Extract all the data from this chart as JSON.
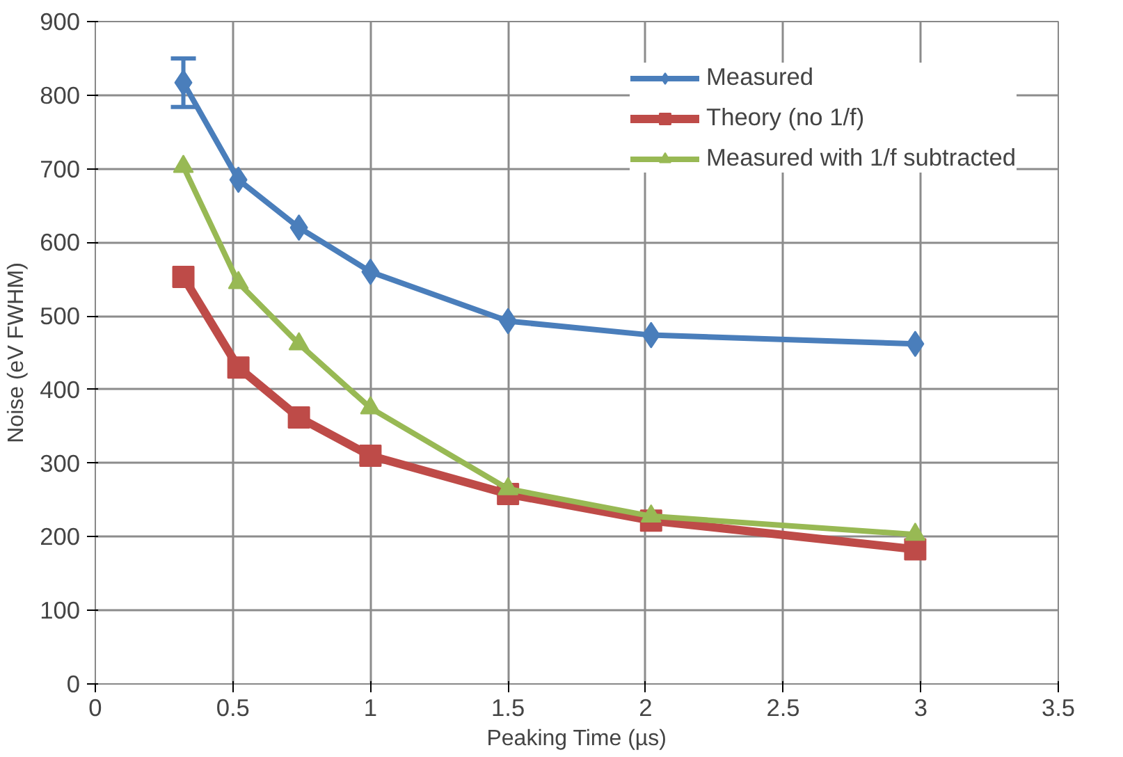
{
  "chart_data": {
    "type": "line",
    "xlabel": "Peaking Time (µs)",
    "ylabel": "Noise (eV FWHM)",
    "xlim": [
      0,
      3.5
    ],
    "xticks": [
      0,
      0.5,
      1,
      1.5,
      2,
      2.5,
      3,
      3.5
    ],
    "ylim": [
      0,
      900
    ],
    "yticks": [
      0,
      100,
      200,
      300,
      400,
      500,
      600,
      700,
      800,
      900
    ],
    "grid": true,
    "legend": "top right",
    "series": [
      {
        "name": "Measured",
        "color": "#4a7ebb",
        "marker": "diamond",
        "x": [
          0.32,
          0.52,
          0.74,
          1.0,
          1.5,
          2.02,
          2.98
        ],
        "values": [
          817,
          685,
          620,
          560,
          493,
          474,
          462
        ],
        "errors": [
          33,
          null,
          null,
          null,
          null,
          null,
          null
        ]
      },
      {
        "name": "Theory (no 1/f)",
        "color": "#be4b48",
        "marker": "square",
        "x": [
          0.32,
          0.52,
          0.74,
          1.0,
          1.5,
          2.02,
          2.98
        ],
        "values": [
          553,
          430,
          362,
          310,
          258,
          222,
          183
        ]
      },
      {
        "name": "Measured with 1/f subtracted",
        "color": "#98b954",
        "marker": "triangle",
        "x": [
          0.32,
          0.52,
          0.74,
          1.0,
          1.5,
          2.02,
          2.98
        ],
        "values": [
          703,
          545,
          462,
          375,
          265,
          228,
          203
        ]
      }
    ]
  }
}
